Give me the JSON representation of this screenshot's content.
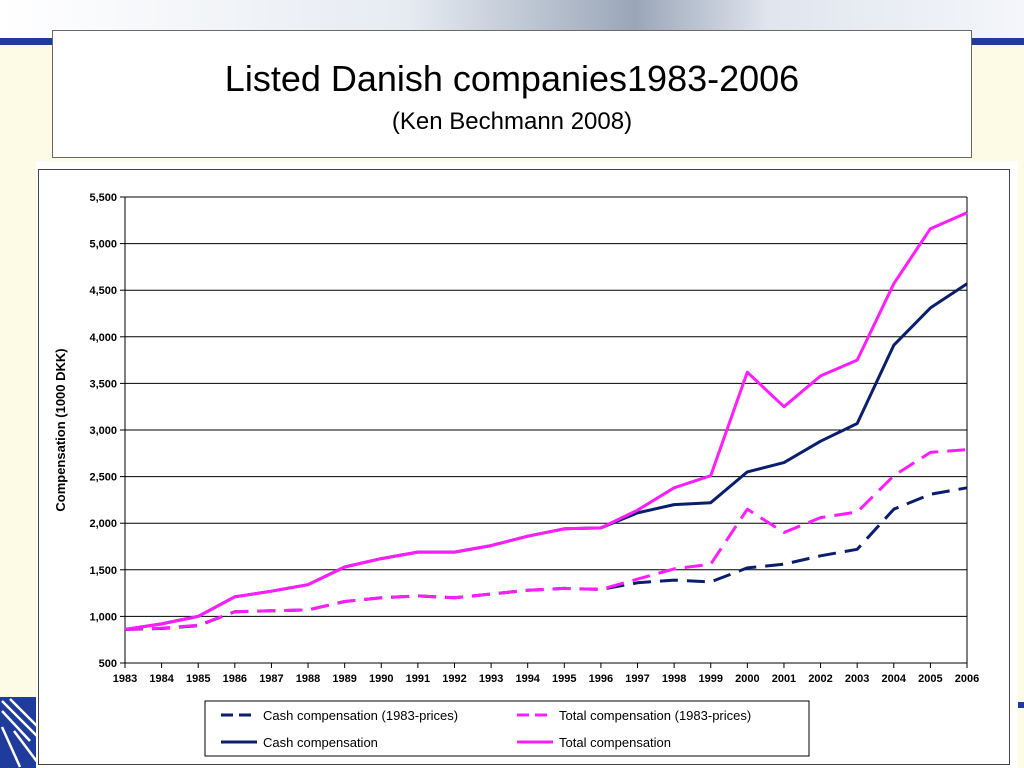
{
  "slide": {
    "title": "Listed Danish companies1983-2006",
    "subtitle": "(Ken Bechmann 2008)"
  },
  "colors": {
    "navy": "#0a1e6e",
    "magenta": "#ff1cff",
    "rule": "#1f3c9c"
  },
  "chart_data": {
    "type": "line",
    "title": "",
    "ylabel": "Compensation (1000 DKK)",
    "xlabel": "",
    "ylim": [
      500,
      5500
    ],
    "yticks": [
      500,
      1000,
      1500,
      2000,
      2500,
      3000,
      3500,
      4000,
      4500,
      5000,
      5500
    ],
    "ytick_labels": [
      "500",
      "1,000",
      "1,500",
      "2,000",
      "2,500",
      "3,000",
      "3,500",
      "4,000",
      "4,500",
      "5,000",
      "5,500"
    ],
    "grid": "horizontal",
    "legend_position": "bottom",
    "x": [
      "1983",
      "1984",
      "1985",
      "1986",
      "1987",
      "1988",
      "1989",
      "1990",
      "1991",
      "1992",
      "1993",
      "1994",
      "1995",
      "1996",
      "1997",
      "1998",
      "1999",
      "2000",
      "2001",
      "2002",
      "2003",
      "2004",
      "2005",
      "2006"
    ],
    "series": [
      {
        "name": "Cash compensation (1983-prices)",
        "color": "#0a1e6e",
        "dashed": true,
        "values": [
          860,
          870,
          900,
          1050,
          1060,
          1070,
          1160,
          1200,
          1220,
          1200,
          1240,
          1280,
          1300,
          1290,
          1360,
          1390,
          1370,
          1520,
          1560,
          1650,
          1720,
          2150,
          2310,
          2380
        ]
      },
      {
        "name": "Total compensation (1983-prices)",
        "color": "#ff1cff",
        "dashed": true,
        "values": [
          860,
          875,
          905,
          1050,
          1060,
          1070,
          1160,
          1200,
          1220,
          1200,
          1240,
          1280,
          1300,
          1290,
          1400,
          1510,
          1560,
          2150,
          1900,
          2060,
          2120,
          2510,
          2760,
          2790
        ]
      },
      {
        "name": "Cash compensation",
        "color": "#0a1e6e",
        "dashed": false,
        "values": [
          860,
          920,
          1000,
          1210,
          1270,
          1340,
          1530,
          1620,
          1690,
          1690,
          1760,
          1860,
          1940,
          1950,
          2110,
          2200,
          2220,
          2550,
          2650,
          2880,
          3070,
          3910,
          4310,
          4570
        ]
      },
      {
        "name": "Total compensation",
        "color": "#ff1cff",
        "dashed": false,
        "values": [
          860,
          920,
          1000,
          1210,
          1270,
          1340,
          1530,
          1620,
          1690,
          1690,
          1760,
          1860,
          1940,
          1950,
          2140,
          2380,
          2510,
          3620,
          3250,
          3580,
          3750,
          4570,
          5160,
          5330
        ]
      }
    ]
  }
}
